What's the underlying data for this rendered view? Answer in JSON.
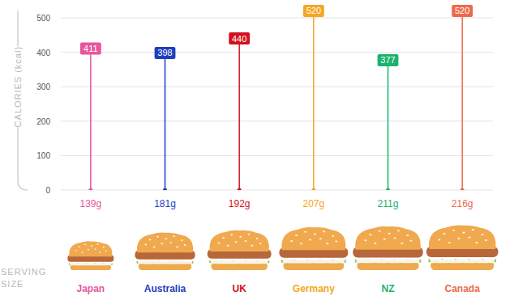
{
  "chart_data": {
    "type": "lollipop",
    "y_label": "CALORIES (kcal)",
    "categories": [
      "Japan",
      "Australia",
      "UK",
      "Germany",
      "NZ",
      "Canada"
    ],
    "values": [
      411,
      398,
      440,
      520,
      377,
      520
    ],
    "colors": [
      "#e8559e",
      "#1f3fbf",
      "#d3101e",
      "#f5a623",
      "#1bb36e",
      "#ec6a4c"
    ],
    "ylim": [
      0,
      520
    ],
    "yticks": [
      0,
      100,
      200,
      300,
      400,
      500
    ],
    "grid": true,
    "data_labels": true,
    "serving_sizes": {
      "name": "SERVING SIZE",
      "values": [
        139,
        181,
        192,
        207,
        211,
        216
      ],
      "labels": [
        "139g",
        "181g",
        "192g",
        "207g",
        "211g",
        "216g"
      ]
    }
  }
}
